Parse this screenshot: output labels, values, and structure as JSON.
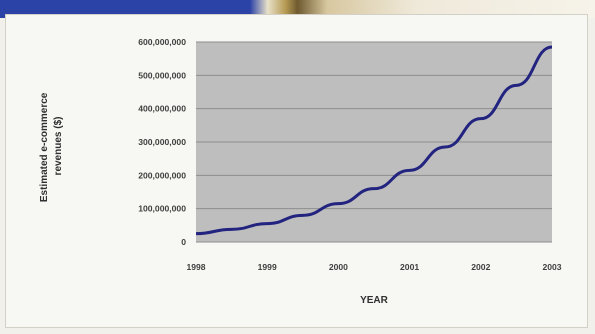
{
  "chart_data": {
    "type": "line",
    "title": "",
    "xlabel": "YEAR",
    "ylabel_lines": [
      "Estimated e-commerce",
      "revenues ($)"
    ],
    "x_tick_labels": [
      "1998",
      "1999",
      "2000",
      "2001",
      "2002",
      "2003"
    ],
    "y_tick_labels": [
      "600,000,000",
      "500,000,000",
      "400,000,000",
      "300,000,000",
      "200,000,000",
      "100,000,000",
      "0"
    ],
    "xlim": [
      1998,
      2003
    ],
    "ylim": [
      0,
      600000000
    ],
    "grid": true,
    "legend": "none",
    "colors": {
      "plot_background": "#bebebe",
      "series_line": "#22247f",
      "gridline": "#8d8d8d"
    },
    "series": [
      {
        "x": [
          1998,
          1998.5,
          1999,
          1999.5,
          2000,
          2000.5,
          2001,
          2001.5,
          2002,
          2002.5,
          2003
        ],
        "values": [
          25000000,
          38000000,
          55000000,
          80000000,
          115000000,
          160000000,
          215000000,
          285000000,
          370000000,
          470000000,
          585000000
        ]
      }
    ]
  }
}
